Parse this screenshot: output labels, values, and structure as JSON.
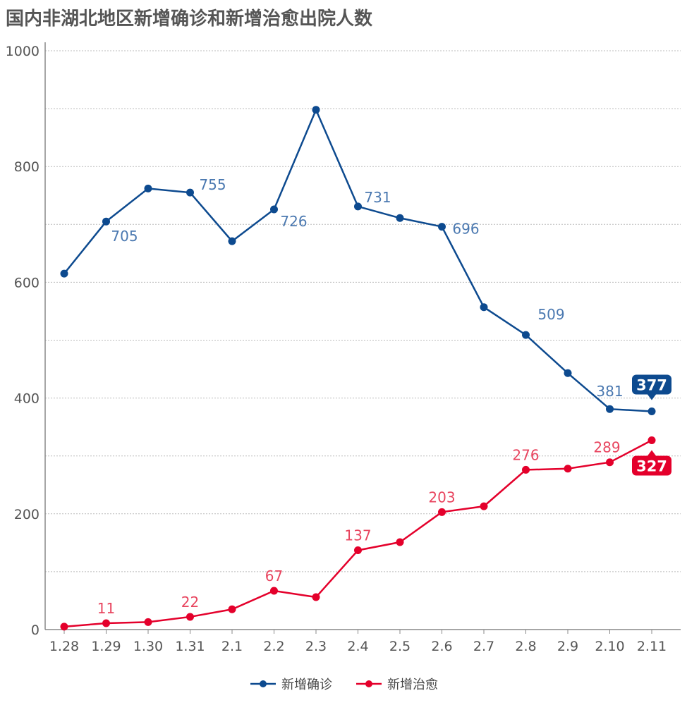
{
  "chart_data": {
    "type": "line",
    "title": "国内非湖北地区新增确诊和新增治愈出院人数",
    "xlabel": "",
    "ylabel": "",
    "categories": [
      "1.28",
      "1.29",
      "1.30",
      "1.31",
      "2.1",
      "2.2",
      "2.3",
      "2.4",
      "2.5",
      "2.6",
      "2.7",
      "2.8",
      "2.9",
      "2.10",
      "2.11"
    ],
    "ylim": [
      0,
      1000
    ],
    "yticks": [
      0,
      200,
      400,
      600,
      800,
      1000
    ],
    "grid": true,
    "legend_position": "bottom",
    "series": [
      {
        "name": "新增确诊",
        "color": "#0d4a8f",
        "label_color": "#4a78b0",
        "values": [
          615,
          705,
          762,
          755,
          671,
          726,
          898,
          731,
          711,
          696,
          557,
          509,
          443,
          381,
          377
        ],
        "data_labels": [
          null,
          "705",
          null,
          "755",
          null,
          "726",
          null,
          "731",
          null,
          "696",
          null,
          "509",
          null,
          "381",
          "377"
        ]
      },
      {
        "name": "新增治愈",
        "color": "#e4002b",
        "label_color": "#e8455f",
        "values": [
          5,
          11,
          13,
          22,
          35,
          67,
          56,
          137,
          151,
          203,
          213,
          276,
          278,
          289,
          327
        ],
        "data_labels": [
          null,
          "11",
          null,
          "22",
          null,
          "67",
          null,
          "137",
          null,
          "203",
          null,
          "276",
          null,
          "289",
          "327"
        ]
      }
    ]
  }
}
